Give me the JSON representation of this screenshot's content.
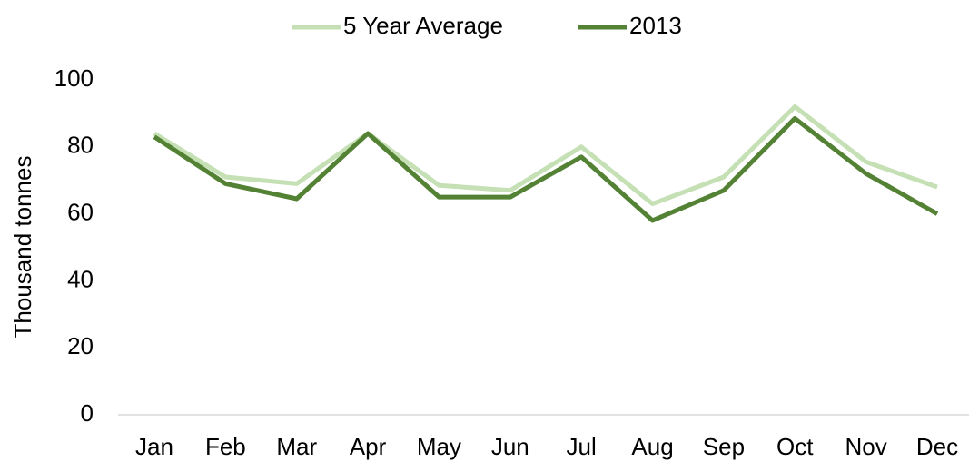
{
  "chart_data": {
    "type": "line",
    "categories": [
      "Jan",
      "Feb",
      "Mar",
      "Apr",
      "May",
      "Jun",
      "Jul",
      "Aug",
      "Sep",
      "Oct",
      "Nov",
      "Dec"
    ],
    "series": [
      {
        "name": "5 Year Average",
        "color": "#c5e0b4",
        "values": [
          84,
          71,
          69,
          84,
          68.5,
          67,
          80,
          63,
          71,
          92,
          75.5,
          68
        ]
      },
      {
        "name": "2013",
        "color": "#548235",
        "values": [
          83,
          69,
          64.5,
          84,
          65,
          65,
          77,
          58,
          67,
          88.5,
          72,
          60
        ]
      }
    ],
    "y_axis_label": "Thousand tonnes",
    "ylim": [
      0,
      100
    ],
    "yticks": [
      0,
      20,
      40,
      60,
      80,
      100
    ],
    "grid": false,
    "legend": "top"
  }
}
